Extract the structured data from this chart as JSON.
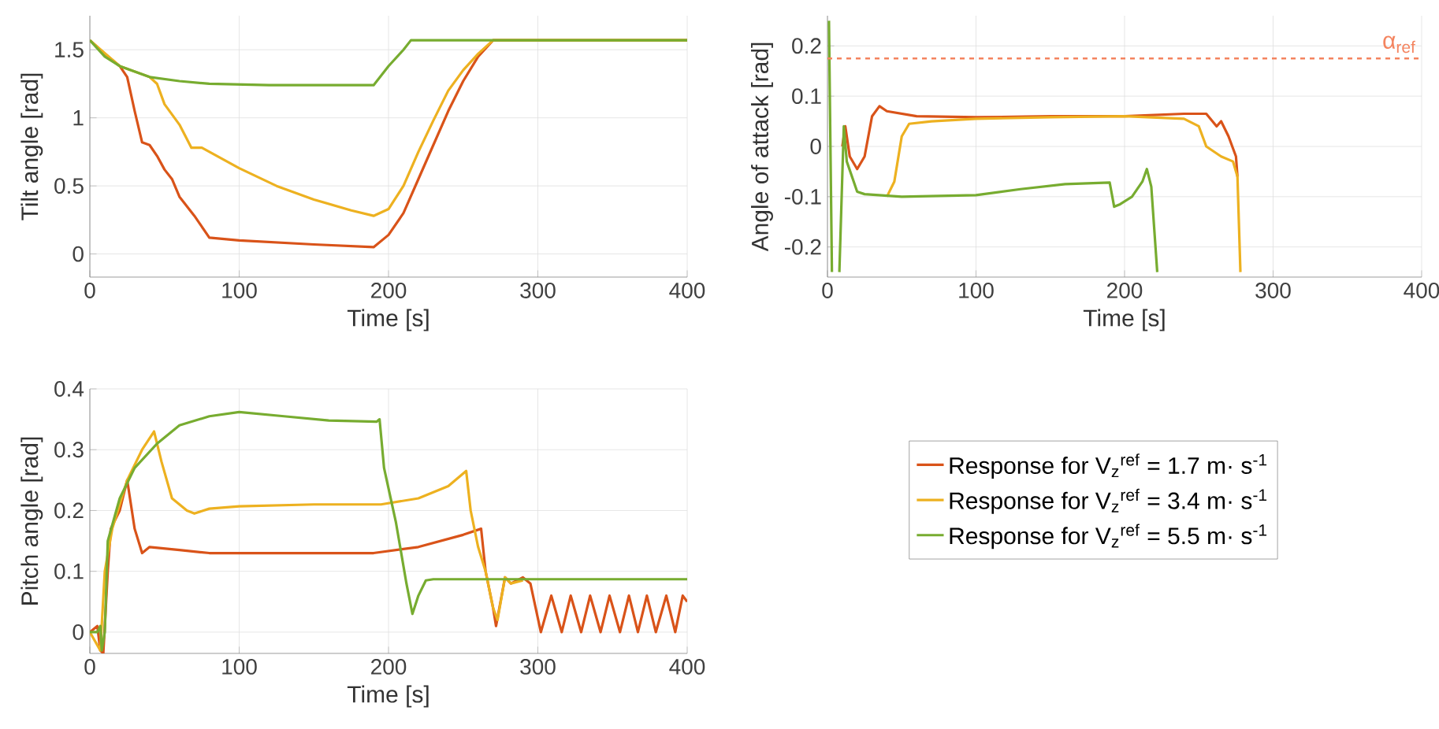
{
  "chart_data": [
    {
      "type": "line",
      "xlabel": "Time [s]",
      "ylabel": "Tilt angle [rad]",
      "xlim": [
        0,
        400
      ],
      "ylim": [
        -0.17,
        1.75
      ],
      "xticks": [
        0,
        100,
        200,
        300,
        400
      ],
      "yticks": [
        0,
        0.5,
        1,
        1.5
      ],
      "grid": true,
      "series": [
        {
          "color": "#d95319",
          "x": [
            0,
            10,
            20,
            25,
            30,
            35,
            40,
            45,
            50,
            55,
            60,
            70,
            80,
            100,
            150,
            190,
            200,
            210,
            220,
            230,
            240,
            250,
            260,
            270,
            400
          ],
          "values": [
            1.57,
            1.47,
            1.38,
            1.3,
            1.05,
            0.82,
            0.8,
            0.72,
            0.62,
            0.55,
            0.42,
            0.28,
            0.12,
            0.1,
            0.07,
            0.05,
            0.14,
            0.3,
            0.55,
            0.8,
            1.05,
            1.27,
            1.45,
            1.57,
            1.57
          ]
        },
        {
          "color": "#edb120",
          "x": [
            0,
            20,
            40,
            45,
            50,
            60,
            68,
            75,
            100,
            125,
            150,
            175,
            190,
            200,
            210,
            220,
            230,
            240,
            250,
            260,
            270,
            400
          ],
          "values": [
            1.57,
            1.38,
            1.3,
            1.25,
            1.1,
            0.95,
            0.78,
            0.78,
            0.63,
            0.5,
            0.4,
            0.32,
            0.28,
            0.33,
            0.5,
            0.75,
            0.98,
            1.2,
            1.35,
            1.47,
            1.57,
            1.57
          ]
        },
        {
          "color": "#77ac30",
          "x": [
            0,
            10,
            20,
            40,
            60,
            80,
            120,
            190,
            200,
            210,
            215,
            400
          ],
          "values": [
            1.57,
            1.45,
            1.38,
            1.3,
            1.27,
            1.25,
            1.24,
            1.24,
            1.38,
            1.5,
            1.57,
            1.57
          ]
        }
      ]
    },
    {
      "type": "line",
      "xlabel": "Time [s]",
      "ylabel": "Angle of attack [rad]",
      "xlim": [
        0,
        400
      ],
      "ylim": [
        -0.26,
        0.26
      ],
      "xticks": [
        0,
        100,
        200,
        300,
        400
      ],
      "yticks": [
        -0.2,
        -0.1,
        0,
        0.1,
        0.2
      ],
      "grid": true,
      "ref_lines": [
        {
          "axis": "y",
          "value": 0.175,
          "label": "α$_{ref}$",
          "color": "#f4845f",
          "line_style": "dashed"
        }
      ],
      "series": [
        {
          "color": "#d95319",
          "x": [
            10,
            12,
            15,
            20,
            25,
            30,
            35,
            40,
            60,
            100,
            150,
            200,
            240,
            255,
            262,
            265,
            270,
            275,
            276
          ],
          "values": [
            0,
            0.04,
            -0.02,
            -0.045,
            -0.02,
            0.06,
            0.08,
            0.07,
            0.06,
            0.058,
            0.06,
            0.06,
            0.065,
            0.065,
            0.04,
            0.05,
            0.02,
            -0.02,
            -0.06
          ]
        },
        {
          "color": "#edb120",
          "x": [
            40,
            45,
            50,
            55,
            70,
            100,
            150,
            200,
            240,
            250,
            255,
            260,
            265,
            273,
            276,
            278
          ],
          "values": [
            -0.1,
            -0.07,
            0.02,
            0.045,
            0.05,
            0.055,
            0.058,
            0.06,
            0.055,
            0.04,
            0,
            -0.01,
            -0.02,
            -0.03,
            -0.06,
            -0.25
          ]
        },
        {
          "color": "#77ac30",
          "x": [
            1,
            2,
            3,
            5,
            8,
            11,
            13,
            20,
            25,
            50,
            100,
            130,
            160,
            190,
            193,
            197,
            205,
            212,
            215,
            218,
            222
          ],
          "values": [
            0.25,
            0,
            -0.25,
            null,
            -0.25,
            0.04,
            -0.03,
            -0.09,
            -0.095,
            -0.1,
            -0.097,
            -0.085,
            -0.075,
            -0.072,
            -0.12,
            -0.115,
            -0.1,
            -0.07,
            -0.045,
            -0.08,
            -0.25
          ]
        }
      ]
    },
    {
      "type": "line",
      "xlabel": "Time [s]",
      "ylabel": "Pitch angle [rad]",
      "xlim": [
        0,
        400
      ],
      "ylim": [
        -0.035,
        0.4
      ],
      "xticks": [
        0,
        100,
        200,
        300,
        400
      ],
      "yticks": [
        0,
        0.1,
        0.2,
        0.3,
        0.4
      ],
      "grid": true,
      "legend": "right",
      "series": [
        {
          "name": "Response for V$_{z}$$^{ref}$ = 1.7 m· s$^{-1}$",
          "color": "#d95319",
          "x": [
            0,
            5,
            7,
            9,
            12,
            14,
            20,
            25,
            30,
            35,
            40,
            60,
            80,
            150,
            190,
            220,
            250,
            262,
            265,
            270,
            272,
            278,
            282,
            290,
            295,
            302,
            309,
            316,
            322,
            329,
            335,
            342,
            348,
            355,
            361,
            367,
            373,
            379,
            386,
            392,
            397,
            400
          ],
          "values": [
            0,
            0.01,
            -0.03,
            -0.035,
            0.1,
            0.17,
            0.2,
            0.25,
            0.17,
            0.13,
            0.14,
            0.135,
            0.13,
            0.13,
            0.13,
            0.14,
            0.16,
            0.17,
            0.1,
            0.04,
            0.01,
            0.09,
            0.08,
            0.09,
            0.08,
            0,
            0.06,
            0,
            0.06,
            0,
            0.06,
            0,
            0.06,
            0,
            0.06,
            0,
            0.06,
            0,
            0.06,
            0,
            0.06,
            0.05
          ]
        },
        {
          "name": "Response for V$_{z}$$^{ref}$ = 3.4 m· s$^{-1}$",
          "color": "#edb120",
          "x": [
            0,
            7,
            10,
            15,
            25,
            35,
            43,
            48,
            55,
            65,
            70,
            80,
            100,
            150,
            195,
            220,
            240,
            252,
            255,
            260,
            265,
            270,
            273,
            278,
            282,
            290
          ],
          "values": [
            0,
            -0.03,
            0.1,
            0.17,
            0.25,
            0.3,
            0.33,
            0.28,
            0.22,
            0.2,
            0.195,
            0.203,
            0.207,
            0.21,
            0.21,
            0.22,
            0.24,
            0.265,
            0.2,
            0.14,
            0.1,
            0.04,
            0.02,
            0.09,
            0.08,
            0.085
          ]
        },
        {
          "name": "Response for V$_{z}$$^{ref}$ = 5.5 m· s$^{-1}$",
          "color": "#77ac30",
          "x": [
            0,
            5,
            7,
            8,
            10,
            12,
            20,
            30,
            45,
            60,
            80,
            100,
            130,
            160,
            192,
            194,
            197,
            205,
            212,
            216,
            220,
            225,
            230,
            400
          ],
          "values": [
            0,
            0,
            0.01,
            -0.03,
            0,
            0.15,
            0.22,
            0.27,
            0.31,
            0.34,
            0.355,
            0.362,
            0.355,
            0.348,
            0.346,
            0.35,
            0.27,
            0.18,
            0.08,
            0.03,
            0.06,
            0.085,
            0.087,
            0.087
          ]
        }
      ]
    }
  ]
}
